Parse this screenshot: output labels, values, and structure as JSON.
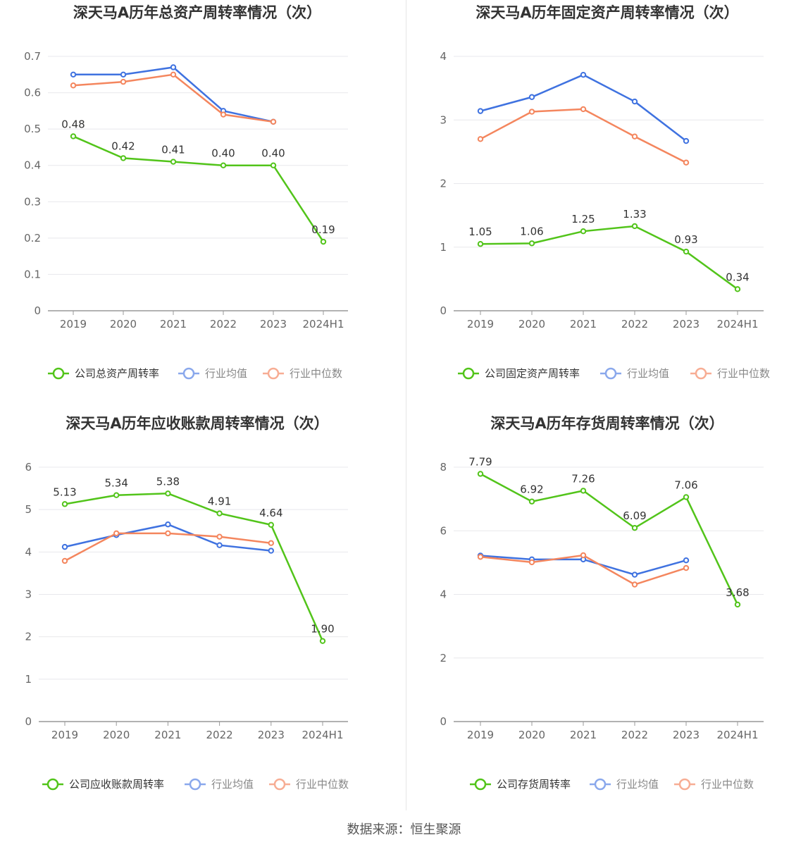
{
  "source": "数据来源：恒生聚源",
  "chart_data": [
    {
      "type": "line",
      "title": "深天马A历年总资产周转率情况（次）",
      "categories": [
        "2019",
        "2020",
        "2021",
        "2022",
        "2023",
        "2024H1"
      ],
      "ylim": [
        0,
        0.7
      ],
      "yticks": [
        "0",
        "0.1",
        "0.2",
        "0.3",
        "0.4",
        "0.5",
        "0.6",
        "0.7"
      ],
      "series": [
        {
          "name": "公司总资产周转率",
          "color": "#52c41a",
          "values": [
            0.48,
            0.42,
            0.41,
            0.4,
            0.4,
            0.19
          ],
          "labels": [
            "0.48",
            "0.42",
            "0.41",
            "0.40",
            "0.40",
            "0.19"
          ]
        },
        {
          "name": "行业均值",
          "color": "#3f72e0",
          "values": [
            0.65,
            0.65,
            0.67,
            0.55,
            0.52,
            null
          ]
        },
        {
          "name": "行业中位数",
          "color": "#f4865e",
          "values": [
            0.62,
            0.63,
            0.65,
            0.54,
            0.52,
            null
          ]
        }
      ]
    },
    {
      "type": "line",
      "title": "深天马A历年固定资产周转率情况（次）",
      "categories": [
        "2019",
        "2020",
        "2021",
        "2022",
        "2023",
        "2024H1"
      ],
      "ylim": [
        0,
        4
      ],
      "yticks": [
        "0",
        "1",
        "2",
        "3",
        "4"
      ],
      "series": [
        {
          "name": "公司固定资产周转率",
          "color": "#52c41a",
          "values": [
            1.05,
            1.06,
            1.25,
            1.33,
            0.93,
            0.34
          ],
          "labels": [
            "1.05",
            "1.06",
            "1.25",
            "1.33",
            "0.93",
            "0.34"
          ]
        },
        {
          "name": "行业均值",
          "color": "#3f72e0",
          "values": [
            3.14,
            3.36,
            3.71,
            3.29,
            2.67,
            null
          ]
        },
        {
          "name": "行业中位数",
          "color": "#f4865e",
          "values": [
            2.7,
            3.13,
            3.17,
            2.74,
            2.33,
            null
          ]
        }
      ]
    },
    {
      "type": "line",
      "title": "深天马A历年应收账款周转率情况（次）",
      "categories": [
        "2019",
        "2020",
        "2021",
        "2022",
        "2023",
        "2024H1"
      ],
      "ylim": [
        0,
        6
      ],
      "yticks": [
        "0",
        "1",
        "2",
        "3",
        "4",
        "5",
        "6"
      ],
      "series": [
        {
          "name": "公司应收账款周转率",
          "color": "#52c41a",
          "values": [
            5.13,
            5.34,
            5.38,
            4.91,
            4.64,
            1.9
          ],
          "labels": [
            "5.13",
            "5.34",
            "5.38",
            "4.91",
            "4.64",
            "1.90"
          ]
        },
        {
          "name": "行业均值",
          "color": "#3f72e0",
          "values": [
            4.12,
            4.4,
            4.65,
            4.16,
            4.03,
            null
          ]
        },
        {
          "name": "行业中位数",
          "color": "#f4865e",
          "values": [
            3.79,
            4.44,
            4.44,
            4.36,
            4.21,
            null
          ]
        }
      ]
    },
    {
      "type": "line",
      "title": "深天马A历年存货周转率情况（次）",
      "categories": [
        "2019",
        "2020",
        "2021",
        "2022",
        "2023",
        "2024H1"
      ],
      "ylim": [
        0,
        8
      ],
      "yticks": [
        "0",
        "2",
        "4",
        "6",
        "8"
      ],
      "series": [
        {
          "name": "公司存货周转率",
          "color": "#52c41a",
          "values": [
            7.79,
            6.92,
            7.26,
            6.09,
            7.06,
            3.68
          ],
          "labels": [
            "7.79",
            "6.92",
            "7.26",
            "6.09",
            "7.06",
            "3.68"
          ]
        },
        {
          "name": "行业均值",
          "color": "#3f72e0",
          "values": [
            5.22,
            5.1,
            5.1,
            4.62,
            5.07,
            null
          ]
        },
        {
          "name": "行业中位数",
          "color": "#f4865e",
          "values": [
            5.18,
            5.01,
            5.23,
            4.31,
            4.83,
            null
          ]
        }
      ]
    }
  ]
}
